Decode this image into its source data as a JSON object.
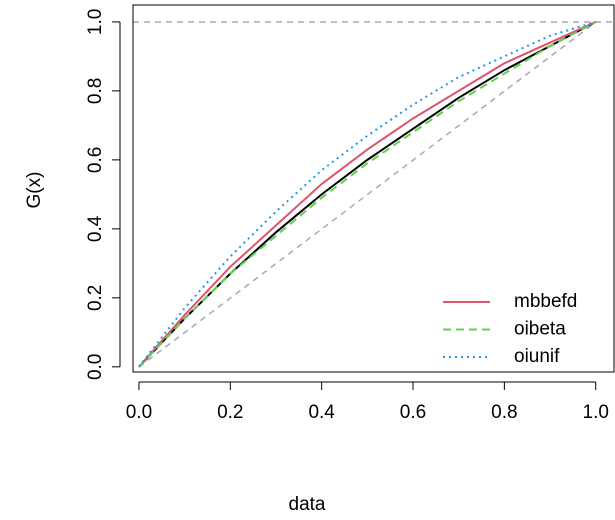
{
  "chart_data": {
    "type": "line",
    "x_label": "data",
    "y_label": "G(x)",
    "x": [
      0,
      0.1,
      0.2,
      0.3,
      0.4,
      0.5,
      0.6,
      0.7,
      0.8,
      0.9,
      1.0
    ],
    "series": [
      {
        "color": "#000000",
        "line_style": "solid",
        "values": [
          0,
          0.14,
          0.27,
          0.39,
          0.5,
          0.6,
          0.69,
          0.78,
          0.86,
          0.93,
          1.0
        ]
      },
      {
        "name": "mbbefd",
        "color": "#df536b",
        "line_style": "solid",
        "values": [
          0,
          0.15,
          0.29,
          0.41,
          0.53,
          0.63,
          0.72,
          0.8,
          0.88,
          0.94,
          1.0
        ]
      },
      {
        "name": "oibeta",
        "color": "#61d04f",
        "line_style": "dashed",
        "values": [
          0,
          0.14,
          0.27,
          0.38,
          0.49,
          0.59,
          0.68,
          0.77,
          0.85,
          0.93,
          1.0
        ]
      },
      {
        "name": "oiunif",
        "color": "#2297e6",
        "line_style": "dotted",
        "values": [
          0,
          0.17,
          0.32,
          0.45,
          0.57,
          0.67,
          0.76,
          0.84,
          0.9,
          0.96,
          1.0
        ]
      }
    ],
    "xlim": [
      -0.013,
      1.04
    ],
    "ylim": [
      -0.015,
      1.049
    ],
    "xticks": [
      {
        "value": 0,
        "label": "0.0"
      },
      0.2,
      0.4,
      0.6,
      0.8,
      {
        "value": 1,
        "label": "1.0"
      }
    ],
    "yticks": [
      {
        "value": 0,
        "label": "0.0"
      },
      0.2,
      0.4,
      0.6,
      0.8,
      {
        "value": 1,
        "label": "1.0"
      }
    ],
    "legend": "bottom-right"
  }
}
